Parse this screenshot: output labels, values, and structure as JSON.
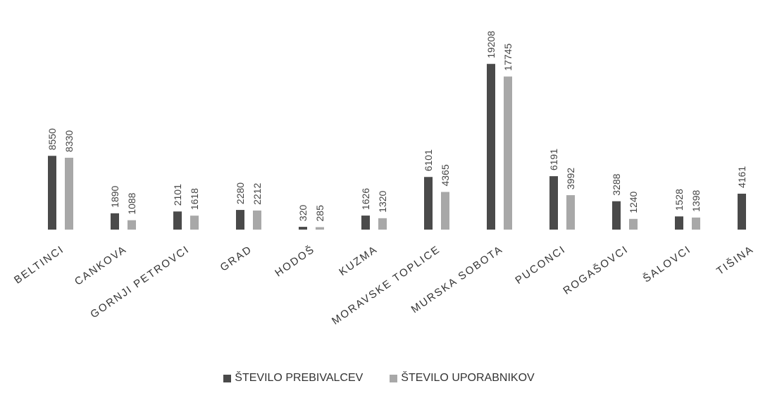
{
  "chart_data": {
    "type": "bar",
    "categories": [
      "BELTINCI",
      "CANKOVA",
      "GORNJI PETROVCI",
      "GRAD",
      "HODOŠ",
      "KUZMA",
      "MORAVSKE TOPLICE",
      "MURSKA SOBOTA",
      "PUCONCI",
      "ROGAŠOVCI",
      "ŠALOVCI",
      "TIŠINA"
    ],
    "series": [
      {
        "name": "ŠTEVILO PREBIVALCEV",
        "values": [
          8550,
          1890,
          2101,
          2280,
          320,
          1626,
          6101,
          19208,
          6191,
          3288,
          1528,
          4161
        ],
        "labels": [
          "8550",
          "1890",
          "2101",
          "2280",
          "320",
          "1626",
          "6101",
          "19208",
          "6191",
          "3288",
          "1528",
          "4161"
        ]
      },
      {
        "name": "ŠTEVILO UPORABNIKOV",
        "values": [
          8330,
          1088,
          1618,
          2212,
          285,
          1320,
          4365,
          17745,
          3992,
          1240,
          1398,
          null
        ],
        "labels": [
          "8330",
          "1088",
          "1618",
          "2212",
          "285",
          "1320",
          "4365",
          "17745",
          "3992",
          "1240",
          "1398",
          ""
        ]
      }
    ],
    "colors": [
      "#4a4a4a",
      "#a8a8a8"
    ],
    "ylim": [
      0,
      20000
    ],
    "grid": false,
    "legend_position": "bottom-center",
    "xlabel": "",
    "ylabel": ""
  }
}
